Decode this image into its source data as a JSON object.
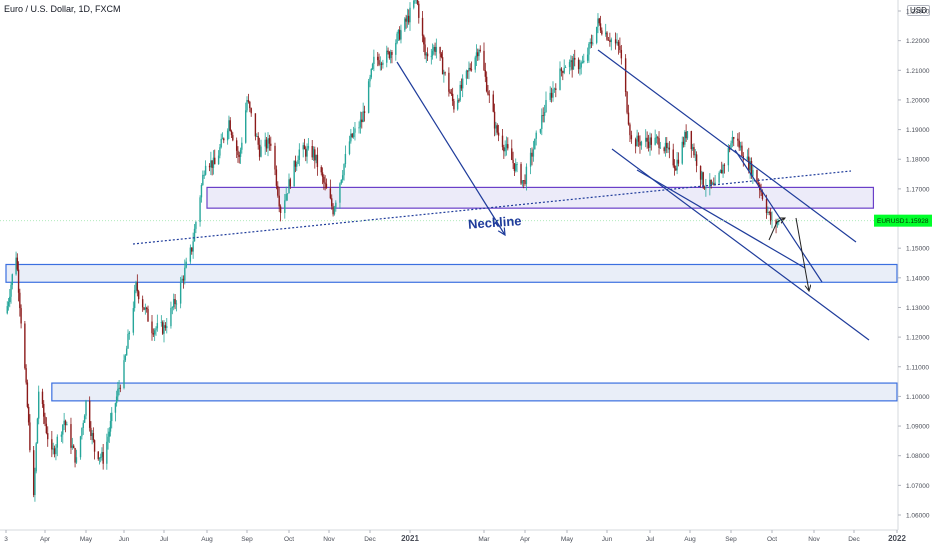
{
  "header": {
    "title": "Euro / U.S. Dollar, 1D, FXCM",
    "currency": "USD"
  },
  "price_tag": {
    "symbol": "EURUSD",
    "price": "1.15928",
    "color": "#00ff2a"
  },
  "annotation": {
    "neckline": "Neckline"
  },
  "colors": {
    "up": "#26a69a",
    "down": "#8b1a1a",
    "drawing": "#1f3c9b",
    "zone_fill": "#e9eef8",
    "zone_border": "#3a6fe0",
    "neckline_border": "#6a3fc8"
  },
  "chart_data": {
    "type": "candlestick",
    "title": "Euro / U.S. Dollar, 1D, FXCM",
    "symbol": "EURUSD",
    "last_price": 1.15928,
    "ylim": [
      1.055,
      1.238
    ],
    "y_ticks": [
      "1.23000",
      "1.22000",
      "1.21000",
      "1.20000",
      "1.19000",
      "1.18000",
      "1.17000",
      "1.16000",
      "1.15000",
      "1.14000",
      "1.13000",
      "1.12000",
      "1.11000",
      "1.10000",
      "1.09000",
      "1.08000",
      "1.07000",
      "1.06000"
    ],
    "x_ticks": [
      "3",
      "Apr",
      "May",
      "Jun",
      "Jul",
      "Aug",
      "Sep",
      "Oct",
      "Nov",
      "Dec",
      "2021",
      "Mar",
      "Apr",
      "May",
      "Jun",
      "Jul",
      "Aug",
      "Sep",
      "Oct",
      "Nov",
      "Dec",
      "2022"
    ],
    "x_range": [
      "2020-03-01",
      "2022-01-01"
    ],
    "price_path": [
      [
        "2020-03-01",
        1.128
      ],
      [
        "2020-03-09",
        1.148
      ],
      [
        "2020-03-15",
        1.115
      ],
      [
        "2020-03-23",
        1.065
      ],
      [
        "2020-03-27",
        1.102
      ],
      [
        "2020-04-06",
        1.08
      ],
      [
        "2020-04-15",
        1.092
      ],
      [
        "2020-04-24",
        1.078
      ],
      [
        "2020-05-01",
        1.098
      ],
      [
        "2020-05-08",
        1.082
      ],
      [
        "2020-05-15",
        1.079
      ],
      [
        "2020-05-25",
        1.098
      ],
      [
        "2020-06-01",
        1.11
      ],
      [
        "2020-06-10",
        1.137
      ],
      [
        "2020-06-22",
        1.123
      ],
      [
        "2020-07-01",
        1.123
      ],
      [
        "2020-07-10",
        1.133
      ],
      [
        "2020-07-21",
        1.15
      ],
      [
        "2020-07-31",
        1.18
      ],
      [
        "2020-08-07",
        1.178
      ],
      [
        "2020-08-18",
        1.193
      ],
      [
        "2020-08-26",
        1.18
      ],
      [
        "2020-09-01",
        1.2
      ],
      [
        "2020-09-10",
        1.183
      ],
      [
        "2020-09-18",
        1.186
      ],
      [
        "2020-09-25",
        1.163
      ],
      [
        "2020-10-09",
        1.183
      ],
      [
        "2020-10-20",
        1.182
      ],
      [
        "2020-11-04",
        1.163
      ],
      [
        "2020-11-16",
        1.186
      ],
      [
        "2020-11-25",
        1.193
      ],
      [
        "2020-12-04",
        1.213
      ],
      [
        "2020-12-15",
        1.215
      ],
      [
        "2020-12-31",
        1.228
      ],
      [
        "2021-01-06",
        1.235
      ],
      [
        "2021-01-13",
        1.215
      ],
      [
        "2021-01-22",
        1.218
      ],
      [
        "2021-02-05",
        1.198
      ],
      [
        "2021-02-25",
        1.218
      ],
      [
        "2021-03-10",
        1.19
      ],
      [
        "2021-03-31",
        1.172
      ],
      [
        "2021-04-15",
        1.197
      ],
      [
        "2021-04-29",
        1.212
      ],
      [
        "2021-05-14",
        1.212
      ],
      [
        "2021-05-25",
        1.226
      ],
      [
        "2021-06-10",
        1.217
      ],
      [
        "2021-06-18",
        1.186
      ],
      [
        "2021-06-30",
        1.186
      ],
      [
        "2021-07-09",
        1.186
      ],
      [
        "2021-07-21",
        1.178
      ],
      [
        "2021-07-30",
        1.19
      ],
      [
        "2021-08-11",
        1.172
      ],
      [
        "2021-08-20",
        1.17
      ],
      [
        "2021-09-03",
        1.188
      ],
      [
        "2021-09-10",
        1.182
      ],
      [
        "2021-09-21",
        1.172
      ],
      [
        "2021-10-01",
        1.158
      ],
      [
        "2021-10-06",
        1.159
      ]
    ],
    "drawings": [
      {
        "kind": "zone",
        "label": "",
        "y1": 1.1705,
        "y2": 1.1635,
        "date_from": "2020-08-01",
        "date_to": "2021-12-15",
        "style": "neckline"
      },
      {
        "kind": "zone",
        "label": "",
        "y1": 1.1445,
        "y2": 1.1385,
        "date_from": "2020-03-01",
        "date_to": "2022-01-01",
        "style": "support"
      },
      {
        "kind": "zone",
        "label": "",
        "y1": 1.1045,
        "y2": 1.0985,
        "date_from": "2020-04-06",
        "date_to": "2022-01-01",
        "style": "support"
      }
    ]
  }
}
